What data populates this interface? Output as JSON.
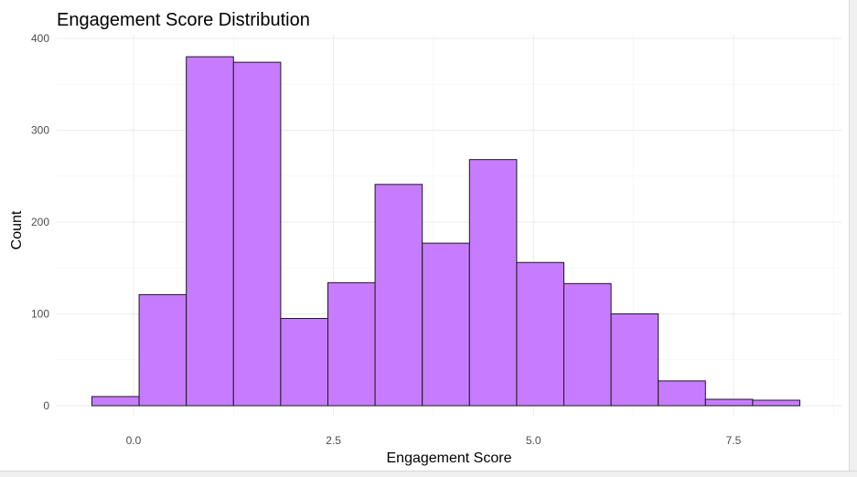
{
  "chart_data": {
    "type": "bar",
    "title": "Engagement Score Distribution",
    "xlabel": "Engagement Score",
    "ylabel": "Count",
    "bins": [
      {
        "x0": -0.52,
        "x1": 0.07,
        "count": 10
      },
      {
        "x0": 0.07,
        "x1": 0.66,
        "count": 121
      },
      {
        "x0": 0.66,
        "x1": 1.25,
        "count": 380
      },
      {
        "x0": 1.25,
        "x1": 1.84,
        "count": 374
      },
      {
        "x0": 1.84,
        "x1": 2.43,
        "count": 95
      },
      {
        "x0": 2.43,
        "x1": 3.02,
        "count": 134
      },
      {
        "x0": 3.02,
        "x1": 3.61,
        "count": 241
      },
      {
        "x0": 3.61,
        "x1": 4.2,
        "count": 177
      },
      {
        "x0": 4.2,
        "x1": 4.79,
        "count": 268
      },
      {
        "x0": 4.79,
        "x1": 5.38,
        "count": 156
      },
      {
        "x0": 5.38,
        "x1": 5.97,
        "count": 133
      },
      {
        "x0": 5.97,
        "x1": 6.56,
        "count": 100
      },
      {
        "x0": 6.56,
        "x1": 7.15,
        "count": 27
      },
      {
        "x0": 7.15,
        "x1": 7.74,
        "count": 7
      },
      {
        "x0": 7.74,
        "x1": 8.33,
        "count": 6
      }
    ],
    "x_ticks": [
      {
        "value": 0,
        "label": "0.0"
      },
      {
        "value": 2.5,
        "label": "2.5"
      },
      {
        "value": 5,
        "label": "5.0"
      },
      {
        "value": 7.5,
        "label": "7.5"
      }
    ],
    "y_ticks": [
      {
        "value": 0,
        "label": "0"
      },
      {
        "value": 100,
        "label": "100"
      },
      {
        "value": 200,
        "label": "200"
      },
      {
        "value": 300,
        "label": "300"
      },
      {
        "value": 400,
        "label": "400"
      }
    ],
    "xlim": [
      -0.96,
      8.85
    ],
    "ylim": [
      0,
      400
    ],
    "grid": true,
    "bar_color": "#c77cff",
    "bar_outline_color": "#1a1a1a"
  }
}
